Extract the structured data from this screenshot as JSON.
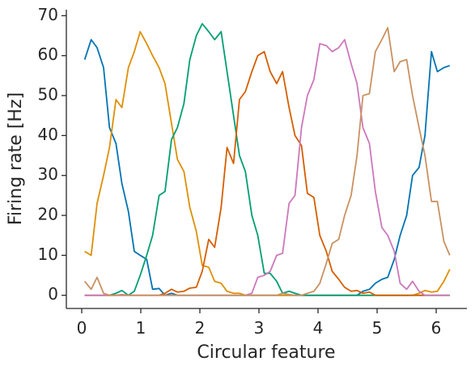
{
  "chart_data": {
    "type": "line",
    "x_label": "Circular feature",
    "y_label": "Firing rate [Hz]",
    "xlim": [
      -0.26,
      6.52
    ],
    "ylim": [
      -3.3,
      71.5
    ],
    "xticks": [
      0,
      1,
      2,
      3,
      4,
      5,
      6
    ],
    "yticks": [
      0,
      10,
      20,
      30,
      40,
      50,
      60,
      70
    ],
    "grid": false,
    "x": [
      0.05,
      0.16,
      0.26,
      0.37,
      0.47,
      0.58,
      0.68,
      0.79,
      0.89,
      0.99,
      1.1,
      1.2,
      1.31,
      1.41,
      1.52,
      1.62,
      1.73,
      1.83,
      1.94,
      2.04,
      2.15,
      2.25,
      2.36,
      2.46,
      2.57,
      2.67,
      2.77,
      2.88,
      2.98,
      3.09,
      3.19,
      3.3,
      3.4,
      3.51,
      3.61,
      3.72,
      3.82,
      3.93,
      4.03,
      4.14,
      4.24,
      4.35,
      4.45,
      4.56,
      4.66,
      4.76,
      4.87,
      4.97,
      5.08,
      5.18,
      5.29,
      5.39,
      5.5,
      5.6,
      5.71,
      5.81,
      5.92,
      6.02,
      6.13,
      6.23
    ],
    "series": [
      {
        "color": "#0173b2",
        "values": [
          59,
          64,
          62,
          57,
          42,
          38,
          28,
          21,
          11,
          10,
          9,
          1.5,
          1.7,
          0,
          0.5,
          0,
          0,
          0,
          0,
          0,
          0,
          0,
          0,
          0,
          0,
          0,
          0,
          0,
          0,
          0,
          0,
          0,
          0,
          0,
          0,
          0,
          0,
          0,
          0,
          0,
          0,
          0,
          0,
          0,
          0,
          1,
          1.5,
          3,
          4,
          4.5,
          9,
          15,
          20,
          30,
          32,
          40,
          61,
          56,
          57,
          57.5
        ]
      },
      {
        "color": "#de8f05",
        "values": [
          11,
          10,
          23,
          30,
          37,
          49,
          47,
          57,
          61,
          66,
          63,
          60,
          57,
          53,
          43,
          34,
          31,
          22,
          16,
          7.5,
          7,
          3.5,
          3,
          1,
          0.5,
          0.5,
          0,
          0,
          0,
          0,
          0,
          0,
          0,
          0,
          0,
          0,
          0,
          0,
          0,
          0,
          0,
          0,
          0,
          0,
          0,
          0,
          0,
          0,
          0,
          0,
          0,
          0,
          0,
          0,
          0.5,
          1.2,
          0.8,
          1,
          3.5,
          6.5
        ]
      },
      {
        "color": "#029e73",
        "values": [
          0,
          0,
          0,
          0,
          0,
          0.5,
          1.2,
          0,
          1,
          5,
          10,
          15,
          25,
          26,
          39,
          42,
          48,
          59,
          65,
          68,
          66,
          64,
          66,
          56,
          45,
          35,
          31,
          20,
          15,
          5.5,
          5.5,
          3.5,
          0.5,
          1,
          0.5,
          0,
          0,
          0,
          0,
          0,
          0,
          0,
          0,
          0,
          0,
          0,
          0,
          0,
          0,
          0,
          0,
          0,
          0,
          0,
          0,
          0,
          0,
          0,
          0,
          0
        ]
      },
      {
        "color": "#d55e00",
        "values": [
          0,
          0,
          0,
          0,
          0,
          0,
          0,
          0,
          0,
          0,
          0,
          0,
          0,
          0.5,
          1.5,
          0.8,
          1,
          1.8,
          2,
          6,
          14,
          12,
          22,
          37,
          33,
          49,
          51,
          56,
          60,
          61,
          56,
          53,
          56,
          47,
          40,
          37.5,
          25.5,
          24.5,
          15,
          11,
          6,
          4,
          2,
          1,
          1.2,
          0.5,
          0.8,
          0,
          0,
          0,
          0,
          0,
          0,
          0,
          0,
          0,
          0,
          0,
          0,
          0
        ]
      },
      {
        "color": "#cc78bc",
        "values": [
          0,
          0,
          0,
          0,
          0,
          0,
          0,
          0,
          0,
          0,
          0,
          0,
          0,
          0,
          0,
          0,
          0,
          0,
          0,
          0,
          0,
          0,
          0,
          0,
          0,
          0,
          0,
          0.5,
          4.5,
          5,
          6,
          10,
          10.5,
          23,
          25,
          42,
          50,
          54,
          63,
          62.5,
          61,
          62,
          64,
          58,
          53,
          42,
          38,
          26,
          17,
          15,
          11,
          3,
          1.5,
          3.5,
          1,
          0,
          0,
          0,
          0,
          0
        ]
      },
      {
        "color": "#ca9161",
        "values": [
          3.5,
          1.5,
          4.5,
          0.5,
          0,
          0,
          0.2,
          0,
          0,
          0,
          0,
          0,
          0,
          0,
          0,
          0,
          0,
          0,
          0,
          0,
          0,
          0,
          0,
          0,
          0,
          0,
          0,
          0,
          0,
          0,
          0,
          0,
          0.5,
          0.2,
          0,
          0,
          0.5,
          1,
          3,
          8,
          13,
          14,
          20,
          25,
          35,
          50,
          50.5,
          61,
          64,
          67,
          56,
          58.5,
          59,
          50,
          42,
          35,
          23.5,
          23.5,
          13.5,
          10
        ]
      }
    ]
  }
}
